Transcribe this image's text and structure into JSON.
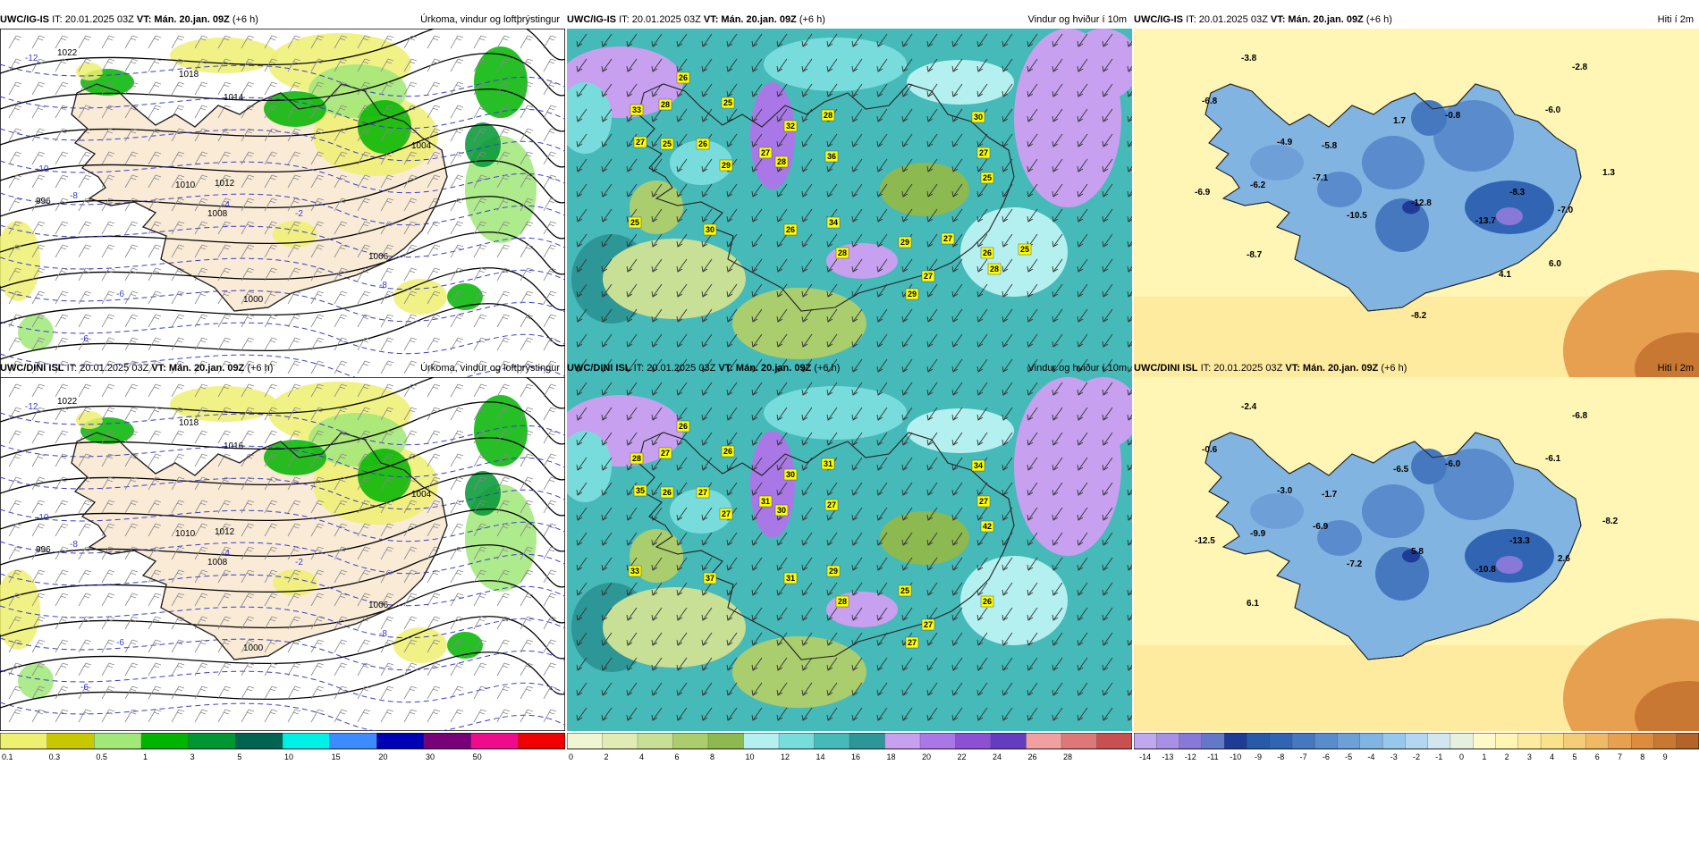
{
  "rows": [
    {
      "model": "UWC/IG-IS",
      "panels": [
        {
          "it": "IT: 20.01.2025 03Z",
          "vt": "VT: Mán. 20.jan. 09Z",
          "lead": "(+6 h)",
          "title": "Úrkoma, vindur og loftþrýstingur",
          "kind": "precip",
          "isobar_labels": [
            "1022",
            "1018",
            "1014",
            "1012",
            "1010",
            "1008",
            "1006",
            "1004",
            "1000",
            "996"
          ],
          "temp_labels": [
            "-12",
            "-10",
            "-8",
            "-6",
            "-4",
            "-2",
            "-8",
            "-6"
          ],
          "colorbar": [
            "0.1",
            "0.3",
            "0.5",
            "1",
            "3",
            "5",
            "10",
            "15",
            "20",
            "30",
            "50"
          ]
        },
        {
          "it": "IT: 20.01.2025 03Z",
          "vt": "VT: Mán. 20.jan. 09Z",
          "lead": "(+6 h)",
          "title": "Vindur og hviður í 10m",
          "kind": "wind",
          "gust_labels": [
            "26",
            "33",
            "28",
            "27",
            "25",
            "26",
            "25",
            "29",
            "32",
            "28",
            "27",
            "28",
            "36",
            "30",
            "27",
            "25",
            "25",
            "30",
            "26",
            "34",
            "28",
            "29",
            "27",
            "29",
            "26",
            "28",
            "27",
            "25"
          ],
          "colorbar": [
            "0",
            "2",
            "4",
            "6",
            "8",
            "10",
            "12",
            "14",
            "16",
            "18",
            "20",
            "22",
            "24",
            "26",
            "28"
          ]
        },
        {
          "it": "IT: 20.01.2025 03Z",
          "vt": "VT: Mán. 20.jan. 09Z",
          "lead": "(+6 h)",
          "title": "Hiti í 2m",
          "kind": "temp",
          "temp_labels": [
            "-3.8",
            "-2.8",
            "-6.8",
            "-6.0",
            "-4.9",
            "-5.8",
            "1.7",
            "-0.8",
            "1.3",
            "-7.1",
            "-6.2",
            "-6.9",
            "-8.3",
            "-7.0",
            "-10.5",
            "-12.8",
            "-13.7",
            "-8.7",
            "4.1",
            "6.0",
            "-8.2"
          ],
          "colorbar": [
            "-14",
            "-13",
            "-12",
            "-11",
            "-10",
            "-9",
            "-8",
            "-7",
            "-6",
            "-5",
            "-4",
            "-3",
            "-2",
            "-1",
            "0",
            "1",
            "2",
            "3",
            "4",
            "5",
            "6",
            "7",
            "8",
            "9"
          ]
        }
      ]
    },
    {
      "model": "UWC/DINI ISL",
      "panels": [
        {
          "it": "IT: 20.01.2025 03Z",
          "vt": "VT: Mán. 20.jan. 09Z",
          "lead": "(+6 h)",
          "title": "Úrkoma, vindur og loftþrýstingur",
          "kind": "precip",
          "isobar_labels": [
            "1022",
            "1018",
            "1016",
            "1012",
            "1010",
            "1008",
            "1006",
            "1004",
            "1000",
            "996"
          ],
          "temp_labels": [
            "-12",
            "-10",
            "-8",
            "-6",
            "-4",
            "-2",
            "-8",
            "-6"
          ],
          "colorbar": [
            "0.1",
            "0.3",
            "0.5",
            "1",
            "3",
            "5",
            "10",
            "15",
            "20",
            "30",
            "50"
          ]
        },
        {
          "it": "IT: 20.01.2025 03Z",
          "vt": "VT: Mán. 20.jan. 09Z",
          "lead": "(+6 h)",
          "title": "Vindur og hviður í 10m",
          "kind": "wind",
          "gust_labels": [
            "26",
            "28",
            "27",
            "35",
            "26",
            "27",
            "26",
            "27",
            "30",
            "31",
            "31",
            "30",
            "27",
            "34",
            "27",
            "42",
            "33",
            "37",
            "31",
            "29",
            "28",
            "25",
            "27",
            "27",
            "26"
          ],
          "colorbar": [
            "0",
            "2",
            "4",
            "6",
            "8",
            "10",
            "12",
            "14",
            "16",
            "18",
            "20",
            "22",
            "24",
            "26",
            "28"
          ]
        },
        {
          "it": "IT: 20.01.2025 03Z",
          "vt": "VT: Mán. 20.jan. 09Z",
          "lead": "(+6 h)",
          "title": "Hiti í 2m",
          "kind": "temp",
          "temp_labels": [
            "-2.4",
            "-6.8",
            "-0.6",
            "-6.1",
            "-3.0",
            "-1.7",
            "-6.5",
            "-6.0",
            "-8.2",
            "-6.9",
            "-9.9",
            "-12.5",
            "-13.3",
            "2.6",
            "-7.2",
            "5.8",
            "-10.8",
            "6.1"
          ],
          "colorbar": [
            "-14",
            "-13",
            "-12",
            "-11",
            "-10",
            "-9",
            "-8",
            "-7",
            "-6",
            "-5",
            "-4",
            "-3",
            "-2",
            "-1",
            "0",
            "1",
            "2",
            "3",
            "4",
            "5",
            "6",
            "7",
            "8",
            "9"
          ]
        }
      ]
    }
  ],
  "colors": {
    "precip": [
      "#eef070",
      "#c8c800",
      "#a0e878",
      "#00b400",
      "#009632",
      "#006450",
      "#00f0e6",
      "#3c8cff",
      "#0000b4",
      "#780078",
      "#f00a8c",
      "#f00000"
    ],
    "wind": [
      "#f0f5d2",
      "#e1ecb4",
      "#c8df96",
      "#aacd6e",
      "#8cb950",
      "#b4f0f0",
      "#78dcdc",
      "#46b9b9",
      "#2d9696",
      "#c8a0f0",
      "#aa78e6",
      "#8c50d2",
      "#643cbe",
      "#f0a0a0",
      "#dc7878",
      "#c85050"
    ],
    "temp": [
      "#c0a8ee",
      "#a890e6",
      "#8878d8",
      "#6478c8",
      "#1e3c96",
      "#285aaa",
      "#3264b4",
      "#4678c0",
      "#5a8ccd",
      "#6ea0d7",
      "#82b4e1",
      "#96c8eb",
      "#b4d7f0",
      "#d2e6f0",
      "#e6f0dc",
      "#fffac8",
      "#fff5b4",
      "#ffeba0",
      "#fae18c",
      "#f5cd78",
      "#f0b964",
      "#e6a050",
      "#dc8c3c",
      "#c87832",
      "#b46428"
    ],
    "land_precip": "#faebd7",
    "sea_precip": "#ffffff",
    "land_temp": "#82b4e1",
    "sea_temp": "#fff5b4"
  }
}
